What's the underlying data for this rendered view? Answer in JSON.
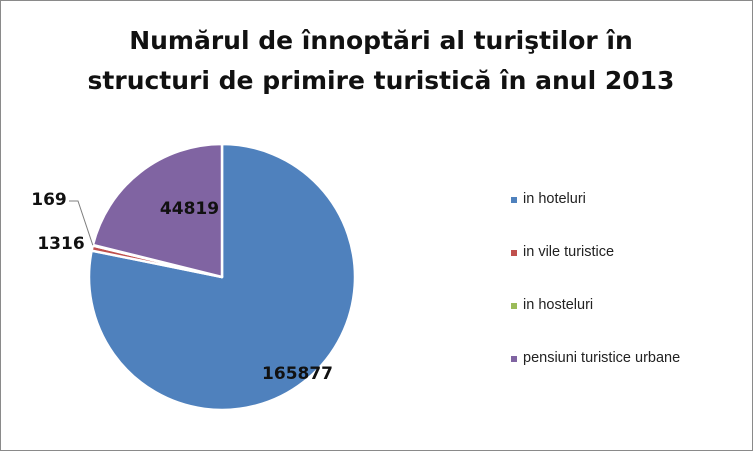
{
  "chart_data": {
    "type": "pie",
    "title": [
      "Numărul de înnoptări al turiştilor în",
      "structuri de primire turistică în anul 2013"
    ],
    "categories": [
      " in hoteluri",
      "in vile turistice",
      "in hosteluri",
      "pensiuni turistice urbane"
    ],
    "values": [
      165877,
      1316,
      169,
      44819
    ],
    "value_labels": [
      "165877",
      "1316",
      "169",
      "44819"
    ],
    "colors": [
      "#4f81bd",
      "#c0504d",
      "#9bbb59",
      "#8064a2"
    ],
    "legend_position": "right"
  }
}
